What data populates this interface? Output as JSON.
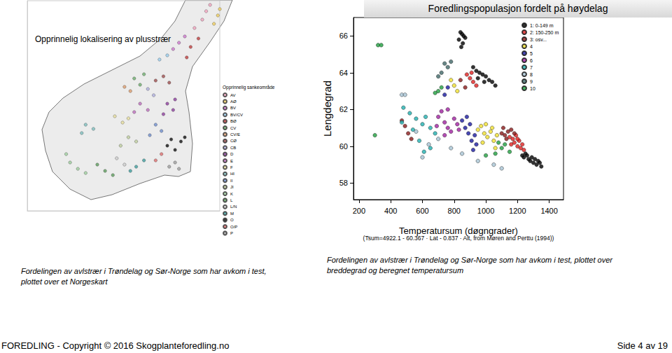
{
  "heading": "Foredlingspopulasjon fordelt på høydelag",
  "captions": [
    "Fordelingen av avlstrær i Trøndelag og Sør-Norge som har avkom i test, plottet over et Norgeskart",
    "Fordelingen av avlstrær i Trøndelag og Sør-Norge som har avkom i test, plottet over breddegrad og beregnet temperatursum"
  ],
  "footer": {
    "left": "FOREDLING - Copyright © 2016 Skogplanteforedling.no",
    "right": "Side 4 av 19"
  },
  "chart_data": [
    {
      "type": "scatter",
      "title": "Opprinnelig lokalisering av plusstrær",
      "legend_title": "Opprinnelig sankeområde",
      "xlim": [
        4,
        13.9
      ],
      "ylim": [
        57.1,
        67.1
      ],
      "tick_labels": false,
      "grid": false,
      "series": [
        {
          "name": "AV",
          "color": "#f4a6c0",
          "values": [
            [
              13.2,
              66.6
            ],
            [
              13.0,
              66.2
            ],
            [
              12.6,
              65.8
            ],
            [
              13.4,
              66.9
            ]
          ]
        },
        {
          "name": "AØ",
          "color": "#f0d060",
          "values": [
            [
              13.8,
              66.4
            ],
            [
              13.6,
              66.0
            ],
            [
              13.9,
              66.7
            ]
          ]
        },
        {
          "name": "BV",
          "color": "#d07ad0",
          "values": [
            [
              11.5,
              64.8
            ],
            [
              11.8,
              65.1
            ],
            [
              12.1,
              65.4
            ]
          ]
        },
        {
          "name": "BV/CV",
          "color": "#9ad0f0",
          "values": [
            [
              10.8,
              64.3
            ],
            [
              11.2,
              64.5
            ]
          ]
        },
        {
          "name": "BØ",
          "color": "#c04040",
          "values": [
            [
              12.4,
              64.9
            ],
            [
              12.8,
              65.3
            ],
            [
              12.2,
              64.4
            ]
          ]
        },
        {
          "name": "CV",
          "color": "#70b070",
          "values": [
            [
              9.5,
              63.4
            ],
            [
              10.0,
              63.6
            ],
            [
              9.8,
              63.1
            ]
          ]
        },
        {
          "name": "CV/E",
          "color": "#e0a070",
          "values": [
            [
              9.0,
              63.0
            ],
            [
              9.3,
              62.8
            ]
          ]
        },
        {
          "name": "CØ",
          "color": "#a05050",
          "values": [
            [
              11.0,
              63.5
            ],
            [
              11.3,
              63.2
            ],
            [
              10.6,
              63.3
            ]
          ]
        },
        {
          "name": "CB",
          "color": "#b0b0e0",
          "values": [
            [
              10.2,
              62.9
            ],
            [
              10.5,
              62.6
            ]
          ]
        },
        {
          "name": "D",
          "color": "#9040a0",
          "values": [
            [
              11.2,
              62.2
            ],
            [
              11.5,
              61.9
            ],
            [
              11.0,
              61.7
            ],
            [
              11.6,
              62.4
            ]
          ]
        },
        {
          "name": "E",
          "color": "#c070c0",
          "values": [
            [
              9.8,
              62.2
            ],
            [
              10.2,
              61.9
            ],
            [
              9.5,
              61.8
            ]
          ]
        },
        {
          "name": "F",
          "color": "#e8e0a0",
          "values": [
            [
              8.5,
              61.6
            ],
            [
              8.9,
              61.3
            ],
            [
              9.2,
              61.5
            ]
          ]
        },
        {
          "name": "HI",
          "color": "#80c0c0",
          "values": [
            [
              7.0,
              61.2
            ],
            [
              7.4,
              61.0
            ],
            [
              6.8,
              60.8
            ]
          ]
        },
        {
          "name": "II",
          "color": "#7090d0",
          "values": [
            [
              10.6,
              61.2
            ],
            [
              10.9,
              60.9
            ],
            [
              10.3,
              60.7
            ]
          ]
        },
        {
          "name": "JI",
          "color": "#c0d0a0",
          "values": [
            [
              9.2,
              60.6
            ],
            [
              9.6,
              60.4
            ],
            [
              8.8,
              60.2
            ]
          ]
        },
        {
          "name": "K",
          "color": "#a0d0a0",
          "values": [
            [
              6.2,
              59.4
            ],
            [
              6.6,
              59.1
            ],
            [
              7.0,
              58.9
            ],
            [
              6.0,
              59.8
            ]
          ]
        },
        {
          "name": "L",
          "color": "#60a060",
          "values": [
            [
              7.6,
              59.3
            ],
            [
              8.0,
              59.0
            ],
            [
              8.4,
              58.8
            ]
          ]
        },
        {
          "name": "L/N",
          "color": "#d0d0d0",
          "values": [
            [
              8.6,
              59.6
            ],
            [
              9.0,
              59.3
            ]
          ]
        },
        {
          "name": "M",
          "color": "#40a0a0",
          "values": [
            [
              9.6,
              59.2
            ],
            [
              10.0,
              59.5
            ],
            [
              9.3,
              59.0
            ]
          ]
        },
        {
          "name": "O",
          "color": "#111111",
          "values": [
            [
              11.2,
              60.2
            ],
            [
              11.6,
              60.0
            ],
            [
              11.9,
              60.4
            ],
            [
              12.1,
              60.6
            ],
            [
              11.4,
              60.5
            ]
          ]
        },
        {
          "name": "O/P",
          "color": "#e07070",
          "values": [
            [
              10.6,
              59.5
            ],
            [
              10.9,
              59.8
            ]
          ]
        },
        {
          "name": "P",
          "color": "#a0a0a0",
          "values": [
            [
              11.3,
              59.2
            ],
            [
              11.6,
              59.4
            ],
            [
              11.8,
              59.1
            ]
          ]
        }
      ]
    },
    {
      "type": "scatter",
      "xlabel": "Temperatursum (døgngrader)",
      "ylabel": "Lengdegrad",
      "annotation": "(Tsum=4922.1 - 60.367 · Lat - 0.837 · Alt, from Møren and Perttu (1994))",
      "xlim": [
        165,
        1490
      ],
      "xticks": [
        200,
        400,
        600,
        800,
        1000,
        1200,
        1400
      ],
      "ylim": [
        57.1,
        67.0
      ],
      "yticks": [
        58,
        60,
        62,
        64,
        66
      ],
      "grid": false,
      "legend": "top-right",
      "marker": "circle",
      "series": [
        {
          "name": "1: 0-149 m",
          "color": "#000000",
          "values": [
            [
              1240,
              59.4
            ],
            [
              1260,
              59.5
            ],
            [
              1270,
              59.3
            ],
            [
              1280,
              59.2
            ],
            [
              1290,
              59.4
            ],
            [
              1300,
              59.1
            ],
            [
              1310,
              59.3
            ],
            [
              1320,
              59.0
            ],
            [
              1330,
              59.2
            ],
            [
              1340,
              59.1
            ],
            [
              1250,
              59.6
            ],
            [
              1230,
              59.5
            ],
            [
              1350,
              58.9
            ],
            [
              920,
              64.3
            ],
            [
              940,
              64.1
            ],
            [
              960,
              64.0
            ],
            [
              980,
              63.9
            ],
            [
              1000,
              63.8
            ],
            [
              1020,
              63.6
            ],
            [
              1040,
              63.5
            ],
            [
              1060,
              63.3
            ],
            [
              950,
              63.7
            ],
            [
              990,
              63.5
            ],
            [
              840,
              66.2
            ],
            [
              850,
              66.1
            ],
            [
              860,
              66.0
            ],
            [
              870,
              65.9
            ],
            [
              830,
              65.8
            ],
            [
              855,
              65.6
            ],
            [
              845,
              65.4
            ]
          ]
        },
        {
          "name": "2: 150-250 m",
          "color": "#e02020",
          "values": [
            [
              1150,
              60.5
            ],
            [
              1170,
              60.4
            ],
            [
              1180,
              60.2
            ],
            [
              1190,
              60.6
            ],
            [
              1200,
              60.0
            ],
            [
              1210,
              60.3
            ],
            [
              1220,
              59.9
            ],
            [
              1230,
              60.1
            ],
            [
              1240,
              59.8
            ],
            [
              1160,
              60.1
            ],
            [
              1200,
              60.4
            ],
            [
              880,
              63.9
            ],
            [
              900,
              63.7
            ],
            [
              920,
              63.5
            ],
            [
              940,
              63.3
            ],
            [
              910,
              64.0
            ]
          ]
        },
        {
          "name": "3: osv...",
          "color": "#8b1a1a",
          "values": [
            [
              1100,
              60.7
            ],
            [
              1120,
              60.6
            ],
            [
              1140,
              60.8
            ],
            [
              1160,
              60.9
            ],
            [
              1130,
              60.4
            ],
            [
              1110,
              61.0
            ],
            [
              1180,
              60.7
            ],
            [
              470,
              61.4
            ],
            [
              490,
              61.1
            ],
            [
              510,
              60.7
            ],
            [
              530,
              60.4
            ],
            [
              840,
              63.6
            ],
            [
              870,
              63.2
            ]
          ]
        },
        {
          "name": "4",
          "color": "#f0e030",
          "values": [
            [
              950,
              60.9
            ],
            [
              970,
              61.1
            ],
            [
              990,
              60.7
            ],
            [
              1010,
              60.5
            ],
            [
              1030,
              60.8
            ],
            [
              1050,
              60.3
            ],
            [
              1070,
              60.6
            ],
            [
              1000,
              61.2
            ],
            [
              980,
              60.2
            ],
            [
              1040,
              61.0
            ],
            [
              1060,
              59.9
            ],
            [
              800,
              63.3
            ],
            [
              820,
              63.0
            ],
            [
              780,
              63.6
            ]
          ]
        },
        {
          "name": "5",
          "color": "#1a1aa0",
          "values": [
            [
              850,
              61.4
            ],
            [
              870,
              61.0
            ],
            [
              890,
              60.7
            ],
            [
              910,
              60.3
            ],
            [
              930,
              60.6
            ],
            [
              900,
              61.2
            ],
            [
              880,
              61.6
            ],
            [
              940,
              60.1
            ],
            [
              920,
              59.8
            ],
            [
              760,
              63.2
            ],
            [
              740,
              62.8
            ]
          ]
        },
        {
          "name": "6",
          "color": "#a020a0",
          "values": [
            [
              700,
              61.6
            ],
            [
              720,
              61.9
            ],
            [
              740,
              61.3
            ],
            [
              760,
              61.0
            ],
            [
              780,
              60.8
            ],
            [
              800,
              61.5
            ],
            [
              820,
              61.2
            ],
            [
              740,
              60.6
            ],
            [
              690,
              61.1
            ],
            [
              760,
              62.0
            ],
            [
              830,
              60.9
            ]
          ]
        },
        {
          "name": "7",
          "color": "#20b0b0",
          "values": [
            [
              480,
              62.1
            ],
            [
              520,
              61.8
            ],
            [
              560,
              61.5
            ],
            [
              600,
              61.2
            ],
            [
              620,
              61.6
            ],
            [
              650,
              61.0
            ],
            [
              680,
              60.7
            ],
            [
              540,
              60.9
            ],
            [
              580,
              60.3
            ],
            [
              610,
              59.7
            ],
            [
              650,
              59.9
            ],
            [
              470,
              61.3
            ]
          ]
        },
        {
          "name": "8",
          "color": "#a8c4d4",
          "values": [
            [
              600,
              59.4
            ],
            [
              640,
              60.1
            ],
            [
              700,
              60.4
            ],
            [
              780,
              59.9
            ],
            [
              850,
              59.6
            ],
            [
              950,
              59.2
            ],
            [
              1050,
              59.0
            ],
            [
              1100,
              58.8
            ],
            [
              560,
              60.8
            ],
            [
              470,
              62.8
            ],
            [
              490,
              62.8
            ]
          ]
        },
        {
          "name": "9",
          "color": "#406868",
          "values": [
            [
              740,
              64.5
            ],
            [
              760,
              64.3
            ],
            [
              780,
              64.6
            ],
            [
              700,
              63.8
            ],
            [
              720,
              64.0
            ]
          ]
        },
        {
          "name": "10",
          "color": "#20a040",
          "values": [
            [
              300,
              60.6
            ],
            [
              320,
              65.5
            ],
            [
              340,
              65.5
            ],
            [
              1080,
              60.2
            ],
            [
              1100,
              59.9
            ],
            [
              1120,
              60.1
            ],
            [
              1060,
              59.6
            ],
            [
              1000,
              59.5
            ],
            [
              700,
              63.0
            ],
            [
              720,
              63.2
            ],
            [
              680,
              62.9
            ],
            [
              1150,
              59.7
            ]
          ]
        }
      ]
    }
  ]
}
